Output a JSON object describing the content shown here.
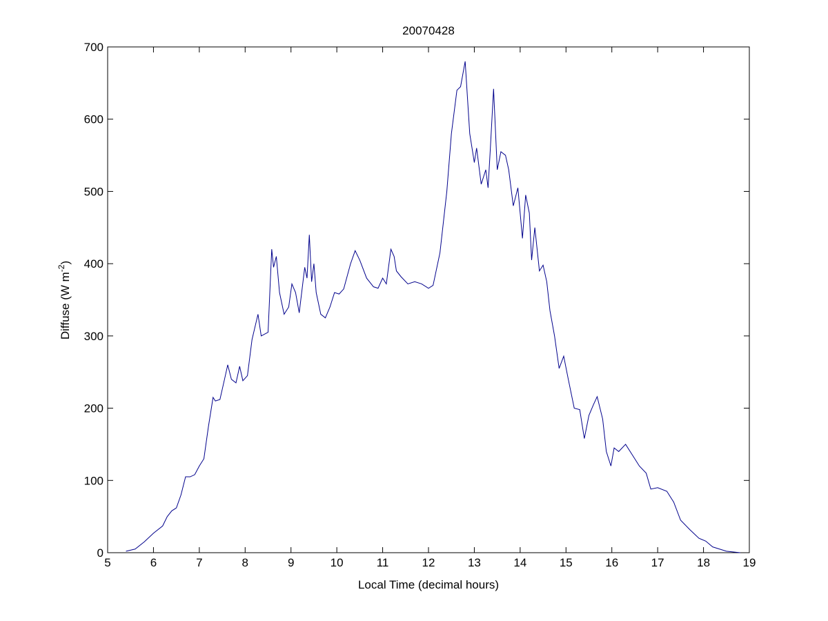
{
  "chart_data": {
    "type": "line",
    "title": "20070428",
    "xlabel": "Local Time (decimal hours)",
    "ylabel": [
      "Diffuse (W m",
      "-2",
      ")"
    ],
    "xlim": [
      5,
      19
    ],
    "xticks": [
      5,
      6,
      7,
      8,
      9,
      10,
      11,
      12,
      13,
      14,
      15,
      16,
      17,
      18,
      19
    ],
    "ylim": [
      0,
      700
    ],
    "yticks": [
      0,
      100,
      200,
      300,
      400,
      500,
      600,
      700
    ],
    "grid": false,
    "series": [
      {
        "color": "#00008b",
        "x": [
          5.4,
          5.6,
          5.8,
          6.0,
          6.2,
          6.3,
          6.4,
          6.5,
          6.6,
          6.7,
          6.8,
          6.9,
          7.0,
          7.1,
          7.2,
          7.3,
          7.35,
          7.45,
          7.55,
          7.62,
          7.7,
          7.8,
          7.88,
          7.95,
          8.05,
          8.15,
          8.28,
          8.35,
          8.5,
          8.58,
          8.62,
          8.68,
          8.75,
          8.85,
          8.95,
          9.02,
          9.1,
          9.18,
          9.3,
          9.35,
          9.4,
          9.45,
          9.5,
          9.55,
          9.65,
          9.75,
          9.85,
          9.95,
          10.05,
          10.15,
          10.3,
          10.4,
          10.5,
          10.65,
          10.8,
          10.9,
          11.0,
          11.08,
          11.18,
          11.25,
          11.3,
          11.4,
          11.55,
          11.7,
          11.85,
          12.0,
          12.1,
          12.25,
          12.4,
          12.5,
          12.62,
          12.7,
          12.8,
          12.9,
          13.0,
          13.05,
          13.15,
          13.25,
          13.3,
          13.35,
          13.42,
          13.5,
          13.58,
          13.68,
          13.75,
          13.85,
          13.95,
          14.05,
          14.12,
          14.2,
          14.25,
          14.32,
          14.42,
          14.5,
          14.58,
          14.65,
          14.75,
          14.85,
          14.95,
          15.05,
          15.18,
          15.3,
          15.4,
          15.5,
          15.6,
          15.68,
          15.8,
          15.88,
          15.98,
          16.05,
          16.15,
          16.3,
          16.45,
          16.6,
          16.75,
          16.85,
          17.0,
          17.2,
          17.35,
          17.5,
          17.7,
          17.9,
          18.05,
          18.2,
          18.5,
          18.8
        ],
        "values": [
          2,
          5,
          15,
          27,
          37,
          50,
          58,
          62,
          80,
          105,
          105,
          108,
          120,
          130,
          175,
          215,
          210,
          212,
          240,
          260,
          240,
          235,
          258,
          238,
          245,
          295,
          330,
          300,
          305,
          420,
          395,
          410,
          360,
          330,
          340,
          372,
          360,
          332,
          395,
          380,
          440,
          375,
          400,
          360,
          330,
          325,
          340,
          360,
          358,
          365,
          400,
          418,
          405,
          380,
          368,
          366,
          380,
          372,
          420,
          410,
          390,
          382,
          372,
          375,
          372,
          366,
          370,
          415,
          500,
          580,
          640,
          645,
          680,
          580,
          540,
          560,
          510,
          530,
          505,
          560,
          642,
          530,
          555,
          550,
          530,
          480,
          505,
          435,
          495,
          470,
          405,
          450,
          390,
          398,
          375,
          335,
          300,
          255,
          272,
          240,
          200,
          198,
          158,
          190,
          205,
          216,
          185,
          140,
          120,
          145,
          140,
          150,
          135,
          120,
          110,
          88,
          90,
          85,
          70,
          45,
          32,
          20,
          16,
          8,
          2,
          0
        ]
      }
    ]
  }
}
